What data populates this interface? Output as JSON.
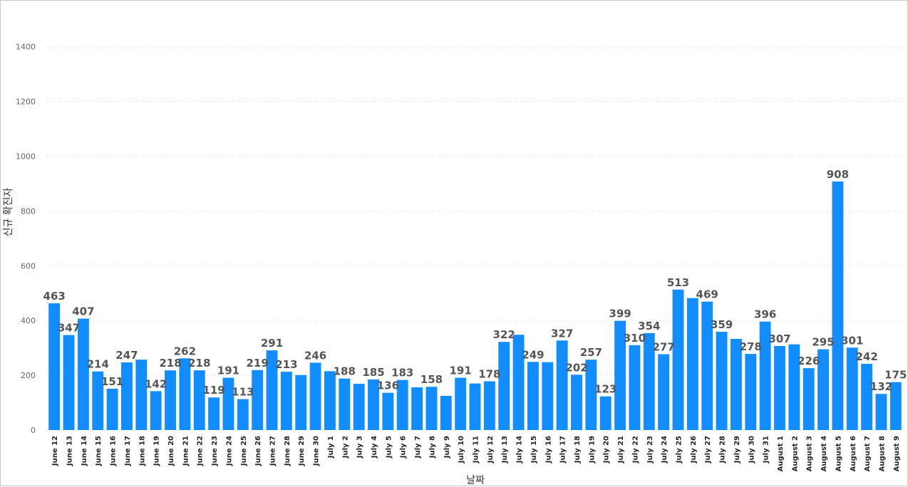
{
  "chart_data": {
    "type": "bar",
    "xlabel": "날짜",
    "ylabel": "신규 확진자",
    "ylim": [
      0,
      1500
    ],
    "yticks": [
      0,
      200,
      400,
      600,
      800,
      1000,
      1200,
      1400
    ],
    "grid": true,
    "bar_color": "#118DFF",
    "categories": [
      "June 12",
      "June 13",
      "June 14",
      "June 15",
      "June 16",
      "June 17",
      "June 18",
      "June 19",
      "June 20",
      "June 21",
      "June 22",
      "June 23",
      "June 24",
      "June 25",
      "June 26",
      "June 27",
      "June 28",
      "June 29",
      "June 30",
      "July 1",
      "July 2",
      "July 3",
      "July 4",
      "July 5",
      "July 6",
      "July 7",
      "July 8",
      "July 9",
      "July 10",
      "July 11",
      "July 12",
      "July 13",
      "July 14",
      "July 15",
      "July 16",
      "July 17",
      "July 18",
      "July 19",
      "July 20",
      "July 21",
      "July 22",
      "July 23",
      "July 24",
      "July 25",
      "July 26",
      "July 27",
      "July 28",
      "July 29",
      "July 30",
      "July 31",
      "August 1",
      "August 2",
      "August 3",
      "August 4",
      "August 5",
      "August 6",
      "August 7",
      "August 8",
      "August 9"
    ],
    "values": [
      463,
      347,
      407,
      214,
      151,
      247,
      257,
      142,
      218,
      262,
      218,
      119,
      191,
      113,
      219,
      291,
      213,
      201,
      246,
      215,
      188,
      169,
      185,
      136,
      183,
      156,
      158,
      125,
      191,
      170,
      178,
      322,
      348,
      249,
      248,
      327,
      202,
      257,
      123,
      399,
      310,
      354,
      277,
      513,
      482,
      469,
      359,
      333,
      278,
      396,
      307,
      313,
      226,
      295,
      908,
      301,
      242,
      132,
      175
    ],
    "labels_shown": [
      true,
      true,
      true,
      true,
      true,
      true,
      false,
      true,
      true,
      true,
      true,
      true,
      true,
      true,
      true,
      true,
      true,
      false,
      true,
      false,
      true,
      false,
      true,
      true,
      true,
      false,
      true,
      false,
      true,
      false,
      true,
      true,
      false,
      true,
      false,
      true,
      true,
      true,
      true,
      true,
      true,
      true,
      true,
      true,
      false,
      true,
      true,
      false,
      true,
      true,
      true,
      false,
      true,
      true,
      true,
      true,
      true,
      true,
      true
    ]
  }
}
